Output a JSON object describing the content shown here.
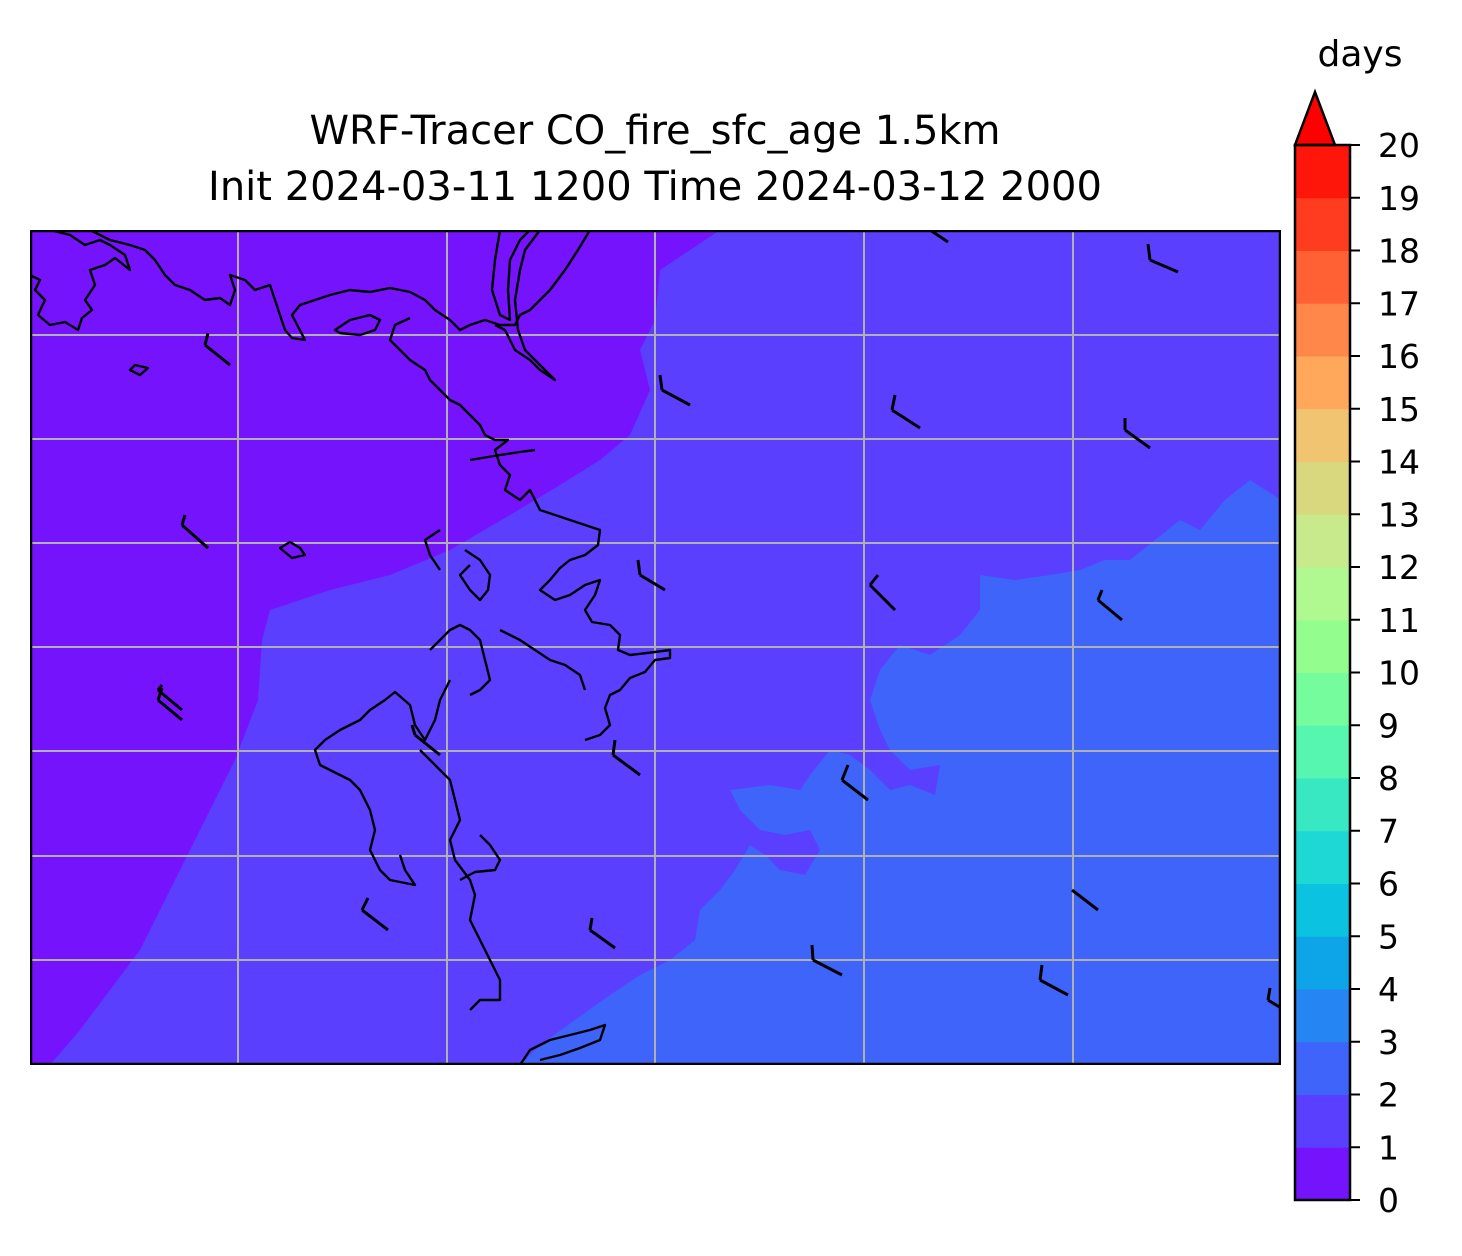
{
  "title": {
    "line1": "WRF-Tracer CO_fire_sfc_age 1.5km",
    "line2": "Init 2024-03-11 1200 Time 2024-03-12 2000"
  },
  "colorbar": {
    "unit": "days",
    "extend": "max",
    "levels": [
      0,
      1,
      2,
      3,
      4,
      5,
      6,
      7,
      8,
      9,
      10,
      11,
      12,
      13,
      14,
      15,
      16,
      17,
      18,
      19,
      20
    ],
    "tick_labels": [
      "0",
      "1",
      "2",
      "3",
      "4",
      "5",
      "6",
      "7",
      "8",
      "9",
      "10",
      "11",
      "12",
      "13",
      "14",
      "15",
      "16",
      "17",
      "18",
      "19",
      "20"
    ],
    "colors": [
      "#7513fd",
      "#5a3ffe",
      "#3f64fa",
      "#2585f2",
      "#0ea5e8",
      "#0bc2e0",
      "#1dd8d4",
      "#38e8c3",
      "#56f5b0",
      "#75fc9c",
      "#93fe8d",
      "#b0f990",
      "#c8ea8c",
      "#d9d87f",
      "#f1c471",
      "#ffa85c",
      "#ff8749",
      "#ff6135",
      "#ff3b20",
      "#ff160b"
    ],
    "extend_color": "#ff0000"
  },
  "map": {
    "fields": {
      "region_0_1_color": "#7513fd",
      "region_1_2_color": "#5a3ffe",
      "region_2_3_color": "#3f64fa"
    },
    "gridline_color": "#b0b0b0",
    "coastline_color": "#000000"
  }
}
